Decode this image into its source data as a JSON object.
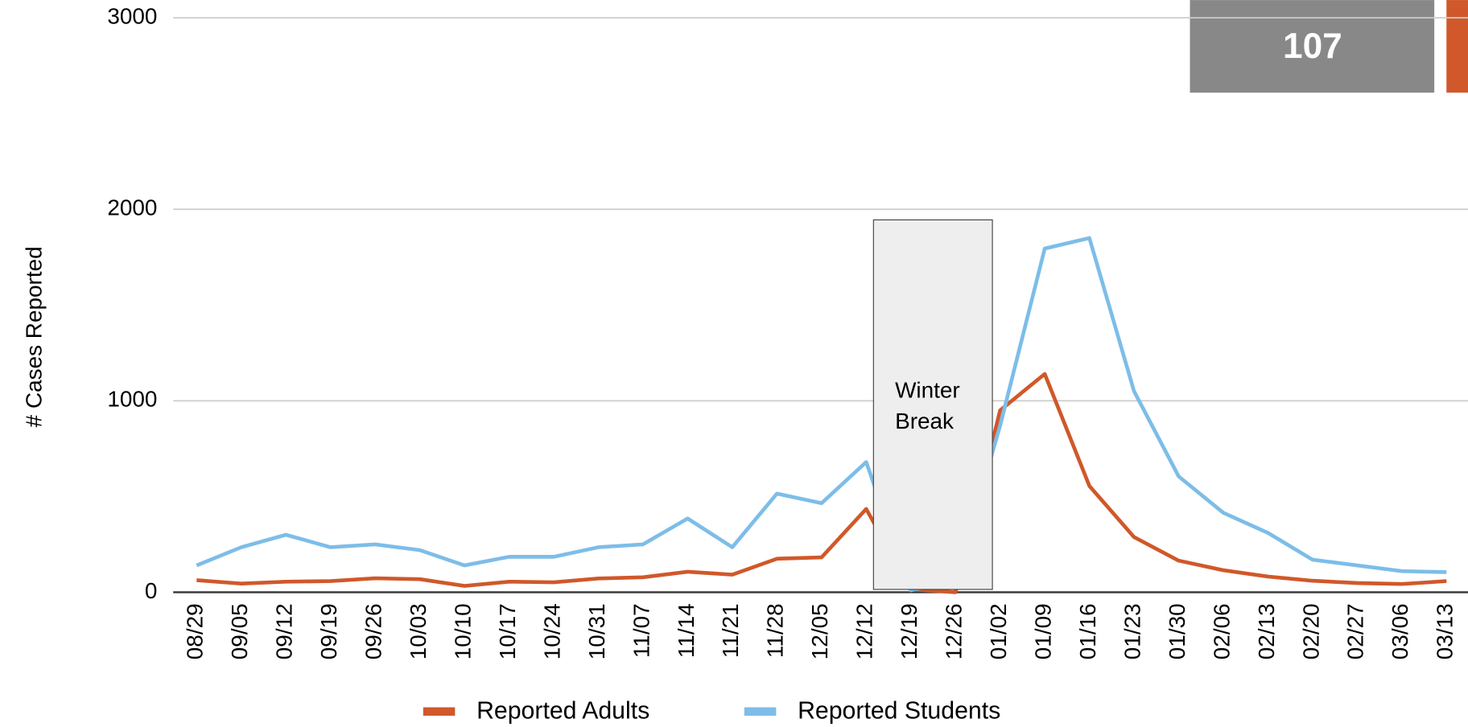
{
  "chart_data": {
    "type": "line",
    "y_label": "# Cases Reported",
    "badge": "107",
    "annotation": "Winter Break",
    "categories": [
      "08/29",
      "09/05",
      "09/12",
      "09/19",
      "09/26",
      "10/03",
      "10/10",
      "10/17",
      "10/24",
      "10/31",
      "11/07",
      "11/14",
      "11/21",
      "11/28",
      "12/05",
      "12/12",
      "12/19",
      "12/26",
      "01/02",
      "01/09",
      "01/16",
      "01/23",
      "01/30",
      "02/06",
      "02/13",
      "02/20",
      "02/27",
      "03/06",
      "03/13"
    ],
    "series": [
      {
        "name": "Reported Adults",
        "color": "#d0582a",
        "values": [
          63,
          45,
          55,
          58,
          73,
          68,
          33,
          55,
          52,
          72,
          78,
          107,
          92,
          175,
          182,
          435,
          15,
          0,
          950,
          1140,
          555,
          288,
          165,
          115,
          82,
          60,
          48,
          43,
          58
        ]
      },
      {
        "name": "Reported Students",
        "color": "#7dbde8",
        "values": [
          140,
          235,
          300,
          235,
          250,
          220,
          140,
          185,
          185,
          235,
          250,
          385,
          235,
          515,
          465,
          680,
          10,
          60,
          870,
          1795,
          1850,
          1050,
          605,
          415,
          310,
          170,
          140,
          110,
          105
        ]
      }
    ],
    "ylim": [
      0,
      3000
    ],
    "yticks": [
      0,
      1000,
      2000,
      3000
    ],
    "grid": true,
    "legend": "bottom"
  }
}
